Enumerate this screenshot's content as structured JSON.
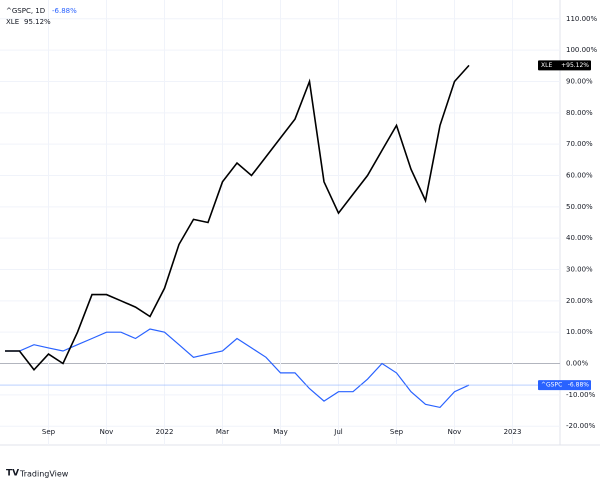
{
  "chart_data": {
    "type": "line",
    "title": "^GSPC, 1D",
    "brand": "TradingView",
    "categories": [
      null,
      null,
      null,
      "Sep",
      null,
      null,
      null,
      "Nov",
      null,
      null,
      null,
      "2022",
      null,
      null,
      null,
      "Mar",
      null,
      null,
      null,
      "May",
      null,
      null,
      null,
      "Jul",
      null,
      null,
      null,
      "Sep",
      null,
      null,
      null,
      "Nov",
      null,
      null,
      null,
      "2023",
      null,
      null,
      null
    ],
    "series": [
      {
        "name": "^GSPC",
        "color": "#2962ff",
        "legend_value": "-6.88%",
        "tag_value": "-6.88%",
        "values": [
          4,
          4,
          6,
          5,
          4,
          6,
          8,
          10,
          10,
          8,
          11,
          10,
          6,
          2,
          3,
          4,
          8,
          5,
          2,
          -3,
          -3,
          -8,
          -12,
          -9,
          -9,
          -5,
          0,
          -3,
          -9,
          -13,
          -14,
          -9,
          -6.88,
          null,
          null,
          null,
          null,
          null,
          null
        ]
      },
      {
        "name": "XLE",
        "color": "#000000",
        "legend_value": "95.12%",
        "tag_value": "+95.12%",
        "values": [
          4,
          4,
          -2,
          3,
          0,
          10,
          22,
          22,
          20,
          18,
          15,
          24,
          38,
          46,
          45,
          58,
          64,
          60,
          66,
          72,
          78,
          90,
          58,
          48,
          54,
          60,
          68,
          76,
          62,
          52,
          76,
          90,
          95.12,
          null,
          null,
          null,
          null,
          null,
          null
        ]
      }
    ],
    "ylim": [
      -26,
      116
    ],
    "yticks": [
      {
        "value": -20,
        "label": "-20.00%"
      },
      {
        "value": -10,
        "label": "-10.00%"
      },
      {
        "value": 0,
        "label": "0.00%"
      },
      {
        "value": 10,
        "label": "10.00%"
      },
      {
        "value": 20,
        "label": "20.00%"
      },
      {
        "value": 30,
        "label": "30.00%"
      },
      {
        "value": 40,
        "label": "40.00%"
      },
      {
        "value": 50,
        "label": "50.00%"
      },
      {
        "value": 60,
        "label": "60.00%"
      },
      {
        "value": 70,
        "label": "70.00%"
      },
      {
        "value": 80,
        "label": "80.00%"
      },
      {
        "value": 90,
        "label": "90.00%"
      },
      {
        "value": 100,
        "label": "100.00%"
      },
      {
        "value": 110,
        "label": "110.00%"
      }
    ],
    "grid": true
  }
}
